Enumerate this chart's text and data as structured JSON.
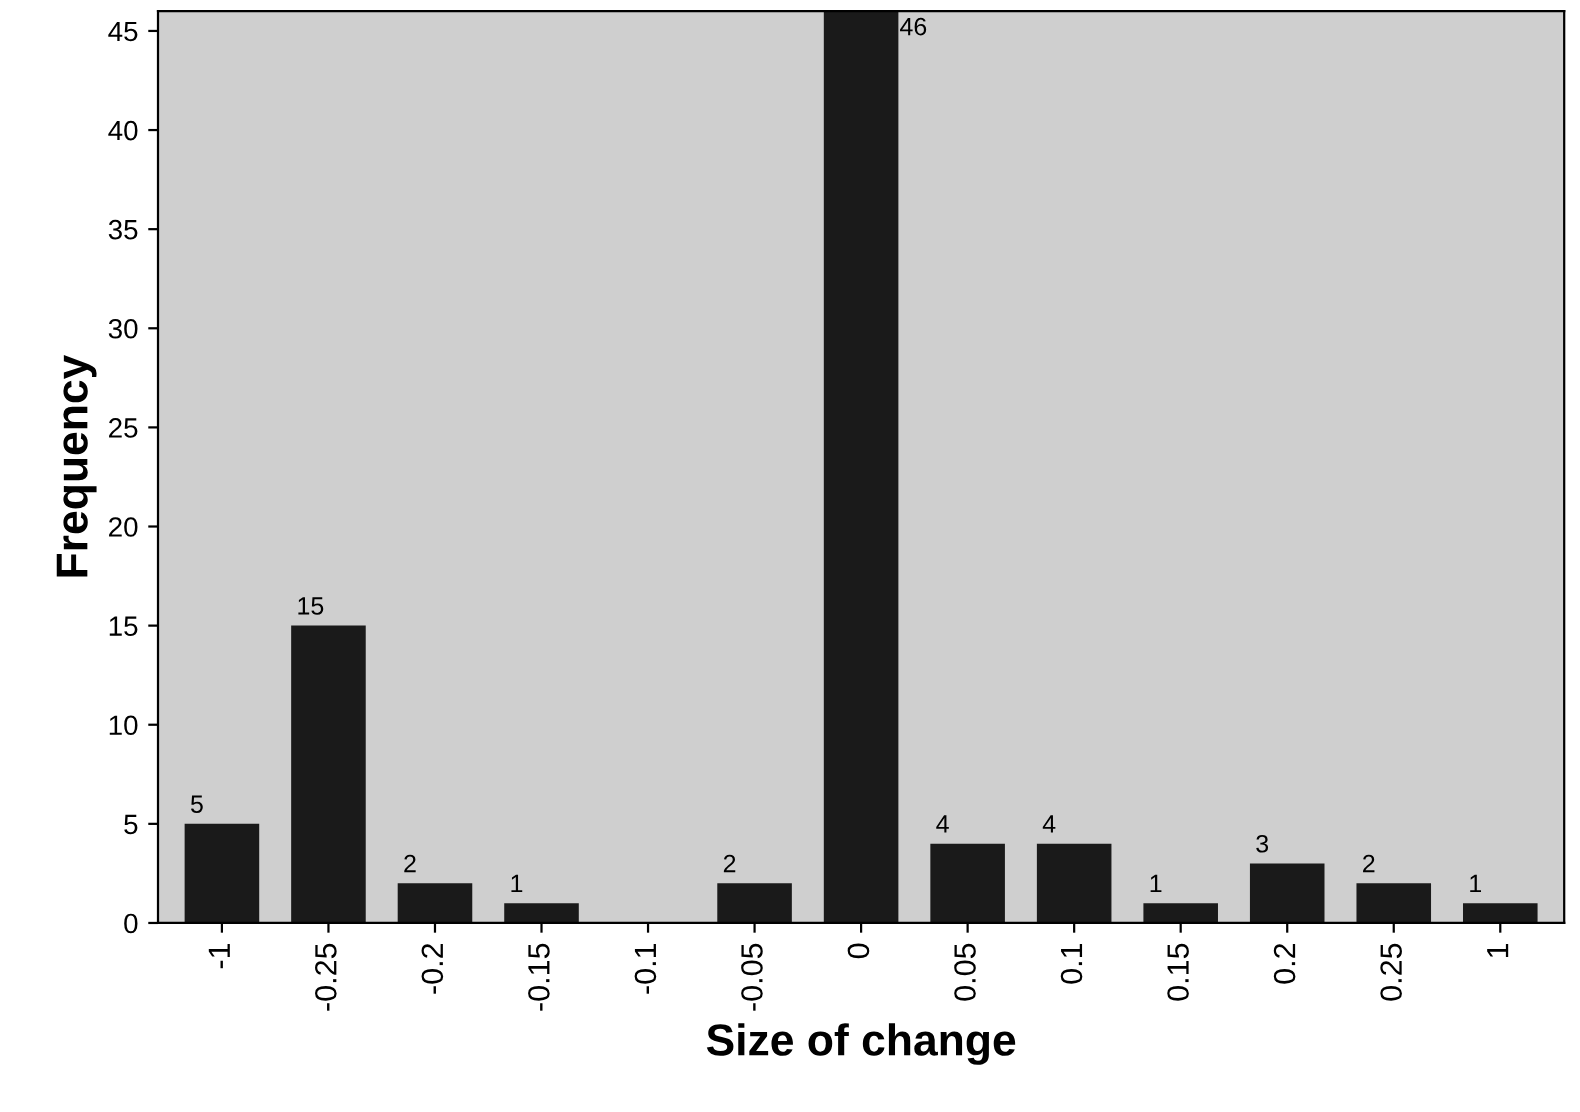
{
  "chart_data": {
    "type": "bar",
    "xlabel": "Size of change",
    "ylabel": "Frequency",
    "categories": [
      "-1",
      "-0.25",
      "-0.2",
      "-0.15",
      "-0.1",
      "-0.05",
      "0",
      "0.05",
      "0.1",
      "0.15",
      "0.2",
      "0.25",
      "1"
    ],
    "values": [
      5,
      15,
      2,
      1,
      0,
      2,
      46,
      4,
      4,
      1,
      3,
      2,
      1
    ],
    "value_labels": [
      "5",
      "15",
      "2",
      "1",
      null,
      "2",
      "46",
      "4",
      "4",
      "1",
      "3",
      "2",
      "1"
    ],
    "color": "#1a1a1a",
    "ylim": [
      0,
      46
    ],
    "yticks": [
      0,
      5,
      10,
      15,
      20,
      25,
      30,
      35,
      40,
      45
    ],
    "grid": false
  }
}
